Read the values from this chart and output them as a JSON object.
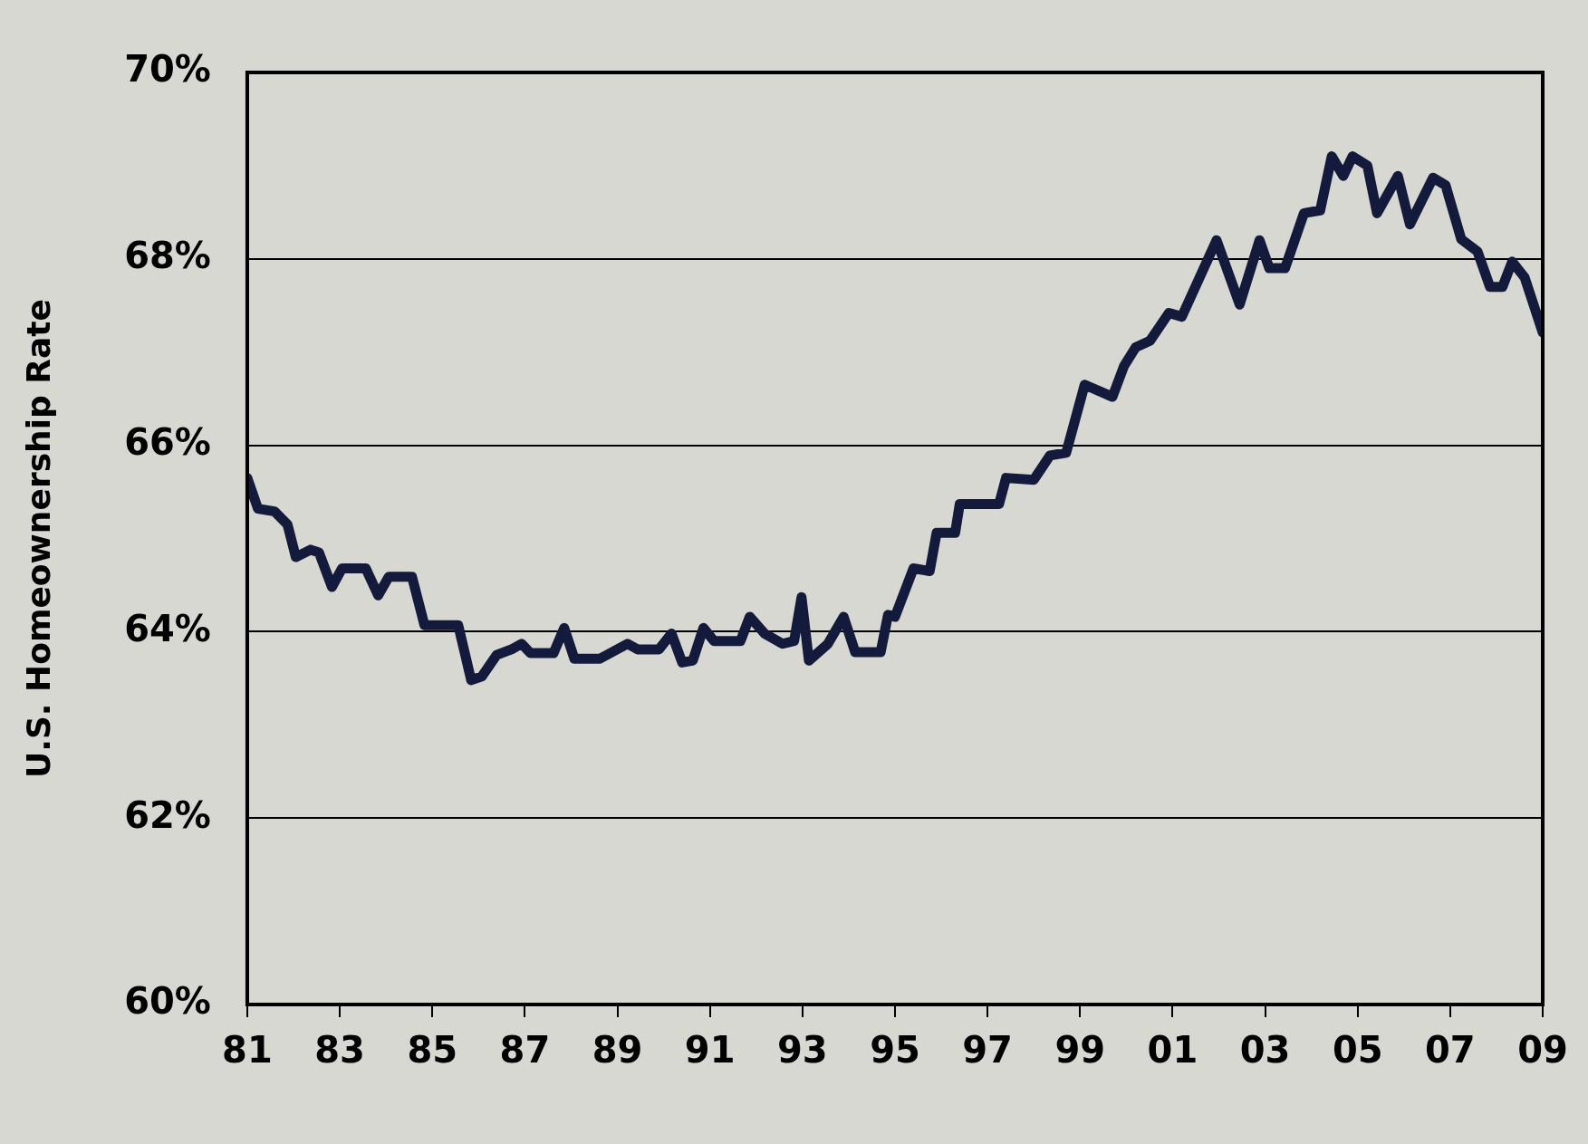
{
  "chart_data": {
    "type": "line",
    "ylabel": "U.S. Homeownership Rate",
    "xlim": [
      1981,
      2009
    ],
    "ylim": [
      60,
      70
    ],
    "xticks": [
      {
        "value": 1981,
        "label": "81"
      },
      {
        "value": 1983,
        "label": "83"
      },
      {
        "value": 1985,
        "label": "85"
      },
      {
        "value": 1987,
        "label": "87"
      },
      {
        "value": 1989,
        "label": "89"
      },
      {
        "value": 1991,
        "label": "91"
      },
      {
        "value": 1993,
        "label": "93"
      },
      {
        "value": 1995,
        "label": "95"
      },
      {
        "value": 1997,
        "label": "97"
      },
      {
        "value": 1999,
        "label": "99"
      },
      {
        "value": 2001,
        "label": "01"
      },
      {
        "value": 2003,
        "label": "03"
      },
      {
        "value": 2005,
        "label": "05"
      },
      {
        "value": 2007,
        "label": "07"
      },
      {
        "value": 2009,
        "label": "09"
      }
    ],
    "yticks": [
      {
        "value": 60,
        "label": "60%"
      },
      {
        "value": 62,
        "label": "62%"
      },
      {
        "value": 64,
        "label": "64%"
      },
      {
        "value": 66,
        "label": "66%"
      },
      {
        "value": 68,
        "label": "68%"
      },
      {
        "value": 70,
        "label": "70%"
      }
    ],
    "grid": "y",
    "marker": "none",
    "line_style": "solid",
    "series": [
      {
        "color": "#141a3c",
        "x": [
          1981.0,
          1981.23,
          1981.59,
          1981.87,
          1982.05,
          1982.37,
          1982.55,
          1982.83,
          1983.05,
          1983.56,
          1983.83,
          1984.06,
          1984.56,
          1984.83,
          1985.56,
          1985.84,
          1986.07,
          1986.39,
          1986.71,
          1986.93,
          1987.12,
          1987.62,
          1987.85,
          1988.07,
          1988.62,
          1989.22,
          1989.44,
          1989.9,
          1990.17,
          1990.4,
          1990.63,
          1990.86,
          1991.09,
          1991.66,
          1991.86,
          1992.18,
          1992.57,
          1992.82,
          1992.98,
          1993.14,
          1993.55,
          1993.89,
          1994.14,
          1994.69,
          1994.85,
          1995.0,
          1995.4,
          1995.75,
          1995.9,
          1996.3,
          1996.4,
          1997.25,
          1997.4,
          1998.0,
          1998.35,
          1998.7,
          1999.1,
          1999.7,
          1999.95,
          2000.2,
          2000.51,
          2000.92,
          2001.2,
          2001.95,
          2002.45,
          2002.88,
          2003.09,
          2003.43,
          2003.84,
          2004.19,
          2004.44,
          2004.69,
          2004.89,
          2005.21,
          2005.42,
          2005.87,
          2006.13,
          2006.63,
          2006.9,
          2007.24,
          2007.59,
          2007.86,
          2008.13,
          2008.34,
          2008.61,
          2009.0
        ],
        "values": [
          65.65,
          65.32,
          65.29,
          65.15,
          64.8,
          64.88,
          64.85,
          64.48,
          64.68,
          64.68,
          64.39,
          64.59,
          64.59,
          64.07,
          64.07,
          63.48,
          63.52,
          63.75,
          63.81,
          63.87,
          63.77,
          63.77,
          64.04,
          63.71,
          63.71,
          63.87,
          63.81,
          63.81,
          63.98,
          63.67,
          63.69,
          64.04,
          63.9,
          63.9,
          64.16,
          63.98,
          63.87,
          63.9,
          64.37,
          63.69,
          63.87,
          64.16,
          63.78,
          63.78,
          64.18,
          64.16,
          64.68,
          64.65,
          65.06,
          65.06,
          65.37,
          65.37,
          65.65,
          65.63,
          65.89,
          65.92,
          66.65,
          66.52,
          66.85,
          67.05,
          67.12,
          67.42,
          67.38,
          68.2,
          67.51,
          68.2,
          67.9,
          67.9,
          68.49,
          68.52,
          69.1,
          68.89,
          69.1,
          69.0,
          68.49,
          68.89,
          68.37,
          68.87,
          68.79,
          68.21,
          68.08,
          67.7,
          67.7,
          67.97,
          67.8,
          67.21
        ]
      }
    ]
  }
}
